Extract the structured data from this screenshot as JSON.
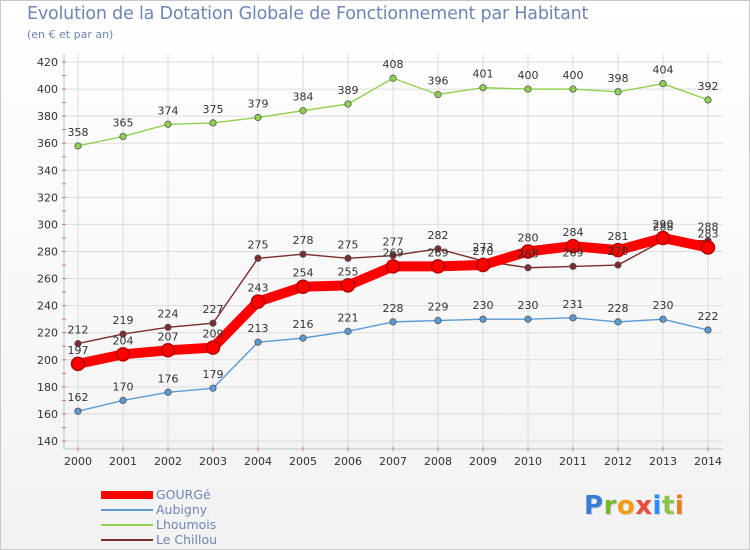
{
  "header": {
    "title": "Evolution de la Dotation Globale de Fonctionnement par Habitant",
    "subtitle": "(en € et par an)"
  },
  "logo": {
    "text": "Proxiti",
    "colors": [
      "#3a7bd5",
      "#7ab833",
      "#f39c12",
      "#e74c3c",
      "#1e90ff",
      "#8bc34a",
      "#e67e22"
    ]
  },
  "chart_data": {
    "type": "line",
    "title": "Evolution de la Dotation Globale de Fonctionnement par Habitant",
    "subtitle": "(en € et par an)",
    "xlabel": "",
    "ylabel": "",
    "x": [
      2000,
      2001,
      2002,
      2003,
      2004,
      2005,
      2006,
      2007,
      2008,
      2009,
      2010,
      2011,
      2012,
      2013,
      2014
    ],
    "ylim": [
      140,
      420
    ],
    "yticks": [
      140,
      160,
      180,
      200,
      220,
      240,
      260,
      280,
      300,
      320,
      340,
      360,
      380,
      400,
      420
    ],
    "grid": true,
    "legend_position": "bottom-left",
    "series": [
      {
        "name": "GOURGé",
        "color": "#ff0000",
        "values": [
          197,
          204,
          207,
          209,
          243,
          254,
          255,
          269,
          269,
          270,
          280,
          284,
          281,
          290,
          283
        ]
      },
      {
        "name": "Aubigny",
        "color": "#5b9bd5",
        "values": [
          162,
          170,
          176,
          179,
          213,
          216,
          221,
          228,
          229,
          230,
          230,
          231,
          228,
          230,
          222
        ]
      },
      {
        "name": "Lhoumois",
        "color": "#8fd14f",
        "values": [
          358,
          365,
          374,
          375,
          379,
          384,
          389,
          408,
          396,
          401,
          400,
          400,
          398,
          404,
          392
        ]
      },
      {
        "name": "Le Chillou",
        "color": "#7b2c2c",
        "values": [
          212,
          219,
          224,
          227,
          275,
          278,
          275,
          277,
          282,
          273,
          268,
          269,
          270,
          288,
          288
        ]
      }
    ]
  }
}
